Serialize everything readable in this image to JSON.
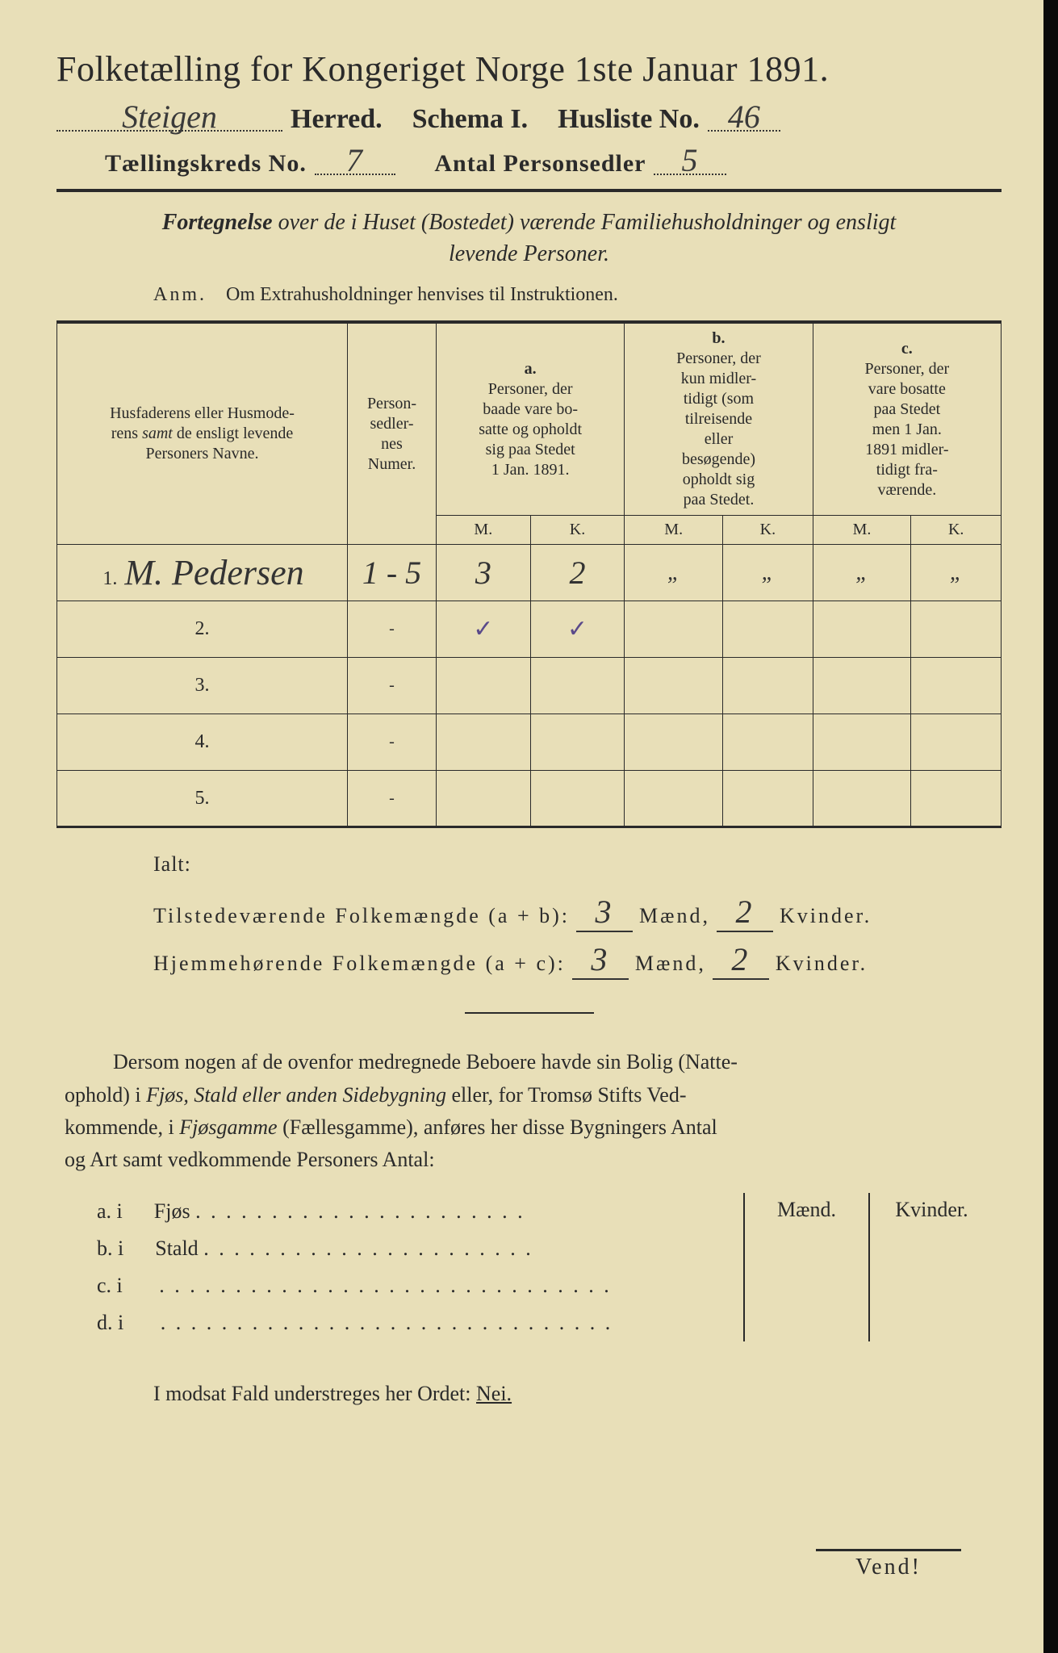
{
  "header": {
    "title": "Folketælling for Kongeriget Norge 1ste Januar 1891.",
    "herred_value": "Steigen",
    "herred_label": "Herred.",
    "schema_label": "Schema I.",
    "husliste_label": "Husliste No.",
    "husliste_value": "46",
    "kreds_label": "Tællingskreds No.",
    "kreds_value": "7",
    "antal_label": "Antal Personsedler",
    "antal_value": "5"
  },
  "fortegnelse": {
    "lead": "Fortegnelse",
    "rest1": " over de i Huset (Bostedet) værende Familiehusholdninger og ensligt",
    "line2": "levende Personer."
  },
  "anm": {
    "label": "Anm.",
    "text": "Om Extrahusholdninger henvises til Instruktionen."
  },
  "table": {
    "col_names_1": "Husfaderens eller Husmode-",
    "col_names_2": "rens ",
    "col_names_2i": "samt",
    "col_names_2b": " de ensligt levende",
    "col_names_3": "Personers Navne.",
    "col_numer_1": "Person-",
    "col_numer_2": "sedler-",
    "col_numer_3": "nes",
    "col_numer_4": "Numer.",
    "a_letter": "a.",
    "a_1": "Personer, der",
    "a_2": "baade vare bo-",
    "a_3": "satte og opholdt",
    "a_4": "sig paa Stedet",
    "a_5": "1 Jan. 1891.",
    "b_letter": "b.",
    "b_1": "Personer, der",
    "b_2": "kun midler-",
    "b_3": "tidigt (som",
    "b_4": "tilreisende",
    "b_5": "eller",
    "b_6": "besøgende)",
    "b_7": "opholdt sig",
    "b_8": "paa Stedet.",
    "c_letter": "c.",
    "c_1": "Personer, der",
    "c_2": "vare bosatte",
    "c_3": "paa Stedet",
    "c_4": "men 1 Jan.",
    "c_5": "1891 midler-",
    "c_6": "tidigt fra-",
    "c_7": "værende.",
    "M": "M.",
    "K": "K.",
    "rows": [
      {
        "n": "1.",
        "name": "M. Pedersen",
        "numer": "1 - 5",
        "aM": "3",
        "aK": "2",
        "bM": "„",
        "bK": "„",
        "cM": "„",
        "cK": "„"
      },
      {
        "n": "2.",
        "name": "",
        "numer": "-",
        "aM": "✓",
        "aK": "✓",
        "bM": "",
        "bK": "",
        "cM": "",
        "cK": ""
      },
      {
        "n": "3.",
        "name": "",
        "numer": "-",
        "aM": "",
        "aK": "",
        "bM": "",
        "bK": "",
        "cM": "",
        "cK": ""
      },
      {
        "n": "4.",
        "name": "",
        "numer": "-",
        "aM": "",
        "aK": "",
        "bM": "",
        "bK": "",
        "cM": "",
        "cK": ""
      },
      {
        "n": "5.",
        "name": "",
        "numer": "-",
        "aM": "",
        "aK": "",
        "bM": "",
        "bK": "",
        "cM": "",
        "cK": ""
      }
    ]
  },
  "ialt": {
    "title": "Ialt:",
    "line1_label": "Tilstedeværende Folkemængde (a + b):",
    "line1_m": "3",
    "line1_k": "2",
    "line2_label": "Hjemmehørende Folkemængde (a + c):",
    "line2_m": "3",
    "line2_k": "2",
    "maend": "Mænd,",
    "kvinder": "Kvinder."
  },
  "dersom": {
    "text1": "Dersom nogen af de ovenfor medregnede Beboere havde sin Bolig (Natte-",
    "text2": "ophold) i ",
    "text2i": "Fjøs, Stald eller anden Sidebygning",
    "text2b": " eller, for Tromsø Stifts Ved-",
    "text3": "kommende, i ",
    "text3i": "Fjøsgamme",
    "text3b": " (Fællesgamme), anføres her disse Bygningers Antal",
    "text4": "og Art samt vedkommende Personers Antal:"
  },
  "side": {
    "maend": "Mænd.",
    "kvinder": "Kvinder.",
    "rows": [
      {
        "label": "a.  i",
        "type": "Fjøs"
      },
      {
        "label": "b.  i",
        "type": "Stald"
      },
      {
        "label": "c.  i",
        "type": ""
      },
      {
        "label": "d.  i",
        "type": ""
      }
    ]
  },
  "modsat": {
    "text": "I modsat Fald understreges her Ordet: ",
    "nei": "Nei."
  },
  "vend": "Vend!",
  "colors": {
    "paper": "#e8dfb8",
    "ink": "#2a2a2a",
    "handwriting": "#333333",
    "purple_check": "#5a4a8a"
  }
}
